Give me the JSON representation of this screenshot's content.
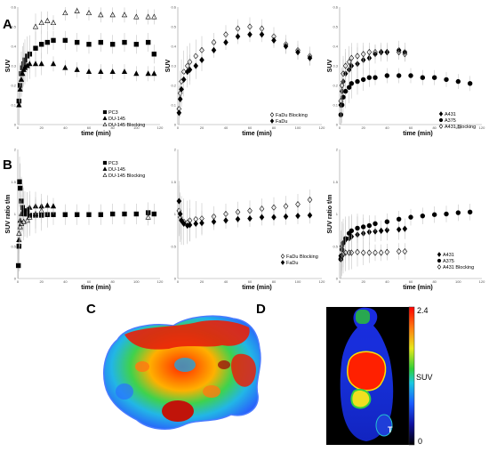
{
  "panel_letters": {
    "a": "A",
    "b": "B",
    "c": "C",
    "d": "D"
  },
  "chart_data": [
    {
      "id": "A1",
      "type": "scatter",
      "xlabel": "time (min)",
      "ylabel": "SUV",
      "xlim": [
        0,
        120
      ],
      "ylim": [
        0,
        0.6
      ],
      "xticks": [
        "0",
        "20",
        "40",
        "60",
        "80",
        "100",
        "120"
      ],
      "yticks": [
        "0",
        "0.1",
        "0.2",
        "0.3",
        "0.4",
        "0.5",
        "0.6"
      ],
      "legend": [
        "PC3",
        "DU-145",
        "DU-145 Blocking"
      ],
      "series": [
        {
          "name": "PC3",
          "marker": "square",
          "fill": "#000",
          "x": [
            1,
            2,
            3,
            4,
            5,
            6,
            8,
            10,
            15,
            20,
            25,
            30,
            40,
            50,
            60,
            70,
            80,
            90,
            100,
            110,
            115
          ],
          "y": [
            0.12,
            0.2,
            0.26,
            0.29,
            0.31,
            0.33,
            0.35,
            0.36,
            0.39,
            0.41,
            0.42,
            0.43,
            0.43,
            0.42,
            0.41,
            0.42,
            0.41,
            0.42,
            0.41,
            0.42,
            0.36
          ]
        },
        {
          "name": "DU-145",
          "marker": "triangle",
          "fill": "#000",
          "x": [
            1,
            2,
            3,
            4,
            5,
            6,
            8,
            10,
            15,
            20,
            30,
            40,
            50,
            60,
            70,
            80,
            90,
            100,
            110,
            115
          ],
          "y": [
            0.1,
            0.18,
            0.23,
            0.26,
            0.28,
            0.29,
            0.3,
            0.31,
            0.31,
            0.31,
            0.31,
            0.29,
            0.28,
            0.27,
            0.27,
            0.27,
            0.27,
            0.26,
            0.26,
            0.26
          ]
        },
        {
          "name": "DU-145 Blocking",
          "marker": "triangle",
          "fill": "none",
          "x": [
            15,
            20,
            25,
            30,
            40,
            50,
            60,
            70,
            80,
            90,
            100,
            110,
            115
          ],
          "y": [
            0.5,
            0.52,
            0.53,
            0.52,
            0.57,
            0.58,
            0.57,
            0.56,
            0.56,
            0.56,
            0.55,
            0.55,
            0.55
          ]
        }
      ]
    },
    {
      "id": "A2",
      "type": "scatter",
      "xlabel": "time (min)",
      "ylabel": "SUV",
      "xlim": [
        0,
        120
      ],
      "ylim": [
        0,
        0.6
      ],
      "xticks": [
        "0",
        "20",
        "40",
        "60",
        "80",
        "100",
        "120"
      ],
      "yticks": [
        "0",
        "0.1",
        "0.2",
        "0.3",
        "0.4",
        "0.5",
        "0.6"
      ],
      "legend": [
        "FaDu Blocking",
        "FaDu"
      ],
      "series": [
        {
          "name": "FaDu Blocking",
          "marker": "diamond",
          "fill": "none",
          "x": [
            1,
            2,
            3,
            5,
            8,
            10,
            15,
            20,
            30,
            40,
            50,
            60,
            70,
            80,
            90,
            100,
            110
          ],
          "y": [
            0.08,
            0.16,
            0.22,
            0.27,
            0.3,
            0.32,
            0.35,
            0.38,
            0.42,
            0.46,
            0.49,
            0.5,
            0.49,
            0.45,
            0.41,
            0.38,
            0.35
          ]
        },
        {
          "name": "FaDu",
          "marker": "diamond",
          "fill": "#000",
          "x": [
            1,
            2,
            3,
            5,
            8,
            10,
            15,
            20,
            30,
            40,
            50,
            60,
            70,
            80,
            90,
            100,
            110
          ],
          "y": [
            0.06,
            0.13,
            0.18,
            0.23,
            0.27,
            0.28,
            0.3,
            0.33,
            0.38,
            0.42,
            0.45,
            0.46,
            0.46,
            0.43,
            0.4,
            0.37,
            0.34
          ]
        }
      ]
    },
    {
      "id": "A3",
      "type": "scatter",
      "xlabel": "time (min)",
      "ylabel": "SUV",
      "xlim": [
        0,
        120
      ],
      "ylim": [
        0,
        0.6
      ],
      "xticks": [
        "0",
        "20",
        "40",
        "60",
        "80",
        "100",
        "120"
      ],
      "yticks": [
        "0",
        "0.1",
        "0.2",
        "0.3",
        "0.4",
        "0.5",
        "0.6"
      ],
      "legend": [
        "A431",
        "A375",
        "A431 Blocking"
      ],
      "series": [
        {
          "name": "A431",
          "marker": "diamond",
          "fill": "#000",
          "x": [
            1,
            2,
            3,
            5,
            8,
            10,
            15,
            20,
            25,
            30,
            35,
            40,
            50,
            55
          ],
          "y": [
            0.1,
            0.17,
            0.22,
            0.26,
            0.28,
            0.3,
            0.31,
            0.33,
            0.34,
            0.36,
            0.37,
            0.37,
            0.38,
            0.37
          ]
        },
        {
          "name": "A375",
          "marker": "circle",
          "fill": "#000",
          "x": [
            1,
            2,
            3,
            5,
            8,
            10,
            15,
            20,
            25,
            30,
            40,
            50,
            60,
            70,
            80,
            90,
            100,
            110
          ],
          "y": [
            0.05,
            0.1,
            0.14,
            0.17,
            0.19,
            0.21,
            0.22,
            0.23,
            0.24,
            0.24,
            0.25,
            0.25,
            0.25,
            0.24,
            0.24,
            0.23,
            0.22,
            0.21
          ]
        },
        {
          "name": "A431 Blocking",
          "marker": "diamond",
          "fill": "none",
          "x": [
            1,
            2,
            3,
            5,
            8,
            10,
            15,
            20,
            25,
            30,
            35,
            40,
            50,
            55
          ],
          "y": [
            0.12,
            0.2,
            0.26,
            0.3,
            0.32,
            0.34,
            0.35,
            0.36,
            0.37,
            0.37,
            0.37,
            0.37,
            0.37,
            0.36
          ]
        }
      ]
    },
    {
      "id": "B1",
      "type": "scatter",
      "xlabel": "time (min)",
      "ylabel": "SUV ratio t/m",
      "xlim": [
        0,
        120
      ],
      "ylim": [
        0,
        2
      ],
      "xticks": [
        "0",
        "20",
        "40",
        "60",
        "80",
        "100",
        "120"
      ],
      "yticks": [
        "0",
        "0.5",
        "1",
        "1.5",
        "2"
      ],
      "legend": [
        "PC3",
        "DU-145",
        "DU-145 Blocking"
      ],
      "series": [
        {
          "name": "PC3",
          "marker": "square",
          "fill": "#000",
          "x": [
            0.5,
            1,
            1.5,
            2,
            3,
            4,
            5,
            6,
            8,
            10,
            15,
            20,
            25,
            30,
            40,
            50,
            60,
            70,
            80,
            90,
            100,
            110,
            115
          ],
          "y": [
            0.2,
            0.5,
            1.5,
            1.4,
            1.2,
            1.1,
            1.05,
            1.0,
            1.0,
            0.98,
            0.98,
            0.98,
            0.99,
            0.99,
            0.99,
            0.99,
            0.99,
            0.99,
            1.0,
            1.0,
            1.0,
            1.02,
            1.0
          ]
        },
        {
          "name": "DU-145",
          "marker": "triangle",
          "fill": "#000",
          "x": [
            1,
            2,
            3,
            5,
            8,
            10,
            15,
            20,
            25,
            30
          ],
          "y": [
            0.6,
            0.9,
            1.0,
            1.05,
            1.07,
            1.1,
            1.12,
            1.12,
            1.13,
            1.12
          ]
        },
        {
          "name": "DU-145 Blocking",
          "marker": "triangle",
          "fill": "none",
          "x": [
            1,
            2,
            3,
            5,
            8,
            10,
            15,
            20,
            110
          ],
          "y": [
            0.7,
            0.8,
            0.85,
            0.88,
            0.9,
            0.95,
            1.0,
            1.05,
            0.95
          ]
        }
      ]
    },
    {
      "id": "B2",
      "type": "scatter",
      "xlabel": "time (min)",
      "ylabel": "",
      "xlim": [
        0,
        120
      ],
      "ylim": [
        0,
        2
      ],
      "xticks": [
        "0",
        "20",
        "40",
        "60",
        "80",
        "100",
        "120"
      ],
      "yticks": [
        "0",
        "0.5",
        "1",
        "1.5",
        "2"
      ],
      "legend": [
        "FaDu Blocking",
        "FaDu"
      ],
      "series": [
        {
          "name": "FaDu Blocking",
          "marker": "diamond",
          "fill": "none",
          "x": [
            1,
            2,
            3,
            5,
            8,
            10,
            15,
            20,
            30,
            40,
            50,
            60,
            70,
            80,
            90,
            100,
            110
          ],
          "y": [
            1.05,
            0.95,
            0.9,
            0.88,
            0.87,
            0.9,
            0.92,
            0.93,
            0.96,
            1.0,
            1.03,
            1.05,
            1.08,
            1.1,
            1.12,
            1.15,
            1.22
          ]
        },
        {
          "name": "FaDu",
          "marker": "diamond",
          "fill": "#000",
          "x": [
            1,
            2,
            3,
            5,
            8,
            10,
            15,
            20,
            30,
            40,
            50,
            60,
            70,
            80,
            90,
            100,
            110
          ],
          "y": [
            1.2,
            1.0,
            0.9,
            0.85,
            0.82,
            0.83,
            0.85,
            0.86,
            0.88,
            0.9,
            0.92,
            0.93,
            0.95,
            0.95,
            0.96,
            0.97,
            0.98
          ]
        }
      ]
    },
    {
      "id": "B3",
      "type": "scatter",
      "xlabel": "time (min)",
      "ylabel": "SUV ratio t/m",
      "xlim": [
        0,
        120
      ],
      "ylim": [
        0,
        2
      ],
      "xticks": [
        "0",
        "20",
        "40",
        "60",
        "80",
        "100",
        "120"
      ],
      "yticks": [
        "0",
        "0.5",
        "1",
        "1.5",
        "2"
      ],
      "legend": [
        "A431",
        "A375",
        "A431 Blocking"
      ],
      "series": [
        {
          "name": "A431",
          "marker": "diamond",
          "fill": "#000",
          "x": [
            1,
            2,
            3,
            5,
            8,
            10,
            15,
            20,
            25,
            30,
            35,
            40,
            50,
            55
          ],
          "y": [
            0.35,
            0.5,
            0.55,
            0.6,
            0.62,
            0.65,
            0.68,
            0.7,
            0.72,
            0.73,
            0.74,
            0.75,
            0.76,
            0.77
          ]
        },
        {
          "name": "A375",
          "marker": "circle",
          "fill": "#000",
          "x": [
            1,
            2,
            3,
            5,
            8,
            10,
            15,
            20,
            25,
            30,
            40,
            50,
            60,
            70,
            80,
            90,
            100,
            110
          ],
          "y": [
            0.3,
            0.45,
            0.55,
            0.62,
            0.7,
            0.74,
            0.78,
            0.8,
            0.82,
            0.85,
            0.88,
            0.92,
            0.95,
            0.97,
            0.99,
            1.0,
            1.02,
            1.03
          ]
        },
        {
          "name": "A431 Blocking",
          "marker": "diamond",
          "fill": "none",
          "x": [
            1,
            2,
            3,
            5,
            8,
            10,
            15,
            20,
            25,
            30,
            35,
            40,
            50,
            55
          ],
          "y": [
            0.3,
            0.35,
            0.38,
            0.4,
            0.4,
            0.4,
            0.41,
            0.4,
            0.4,
            0.4,
            0.4,
            0.41,
            0.42,
            0.42
          ]
        }
      ]
    }
  ],
  "colorbar": {
    "max": "2.4",
    "min": "0",
    "label": "SUV"
  },
  "tumor_label": "T"
}
